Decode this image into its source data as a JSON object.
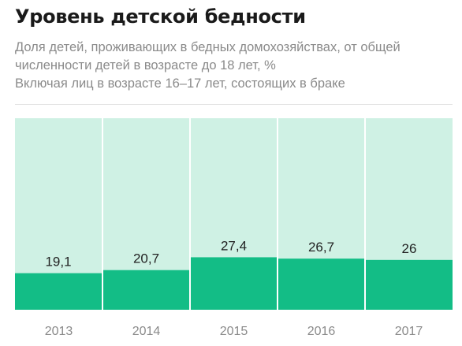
{
  "header": {
    "title": "Уровень детской бедности",
    "subtitle": "Доля детей, проживающих в бедных домохозяйствах, от общей численности детей в возрасте до 18 лет, %",
    "note": "Включая лиц в возрасте 16–17 лет, состоящих в браке"
  },
  "chart_data": {
    "type": "bar",
    "title": "Уровень детской бедности",
    "subtitle": "Доля детей, проживающих в бедных домохозяйствах, от общей численности детей в возрасте до 18 лет, %",
    "annotation": "Включая лиц в возрасте 16–17 лет, состоящих в браке",
    "categories": [
      "2013",
      "2014",
      "2015",
      "2016",
      "2017"
    ],
    "values": [
      19.1,
      20.7,
      27.4,
      26.7,
      26
    ],
    "value_labels": [
      "19,1",
      "20,7",
      "27,4",
      "26,7",
      "26"
    ],
    "ylim": [
      0,
      100
    ],
    "background_fill": "stacked to 100%",
    "grid": false,
    "legend": "none",
    "colors": {
      "bar": "#13bd86",
      "background": "#cff1e4"
    }
  }
}
